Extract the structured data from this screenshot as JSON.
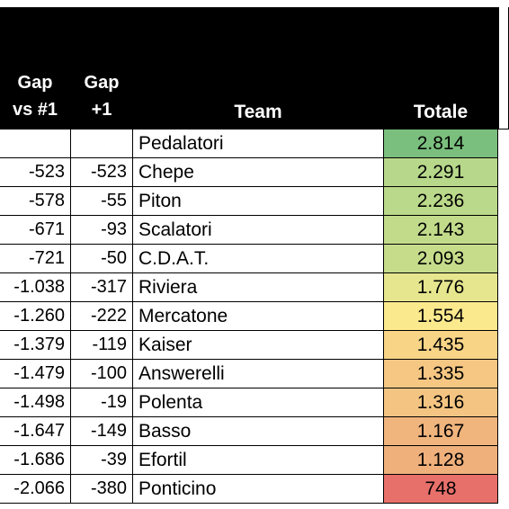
{
  "headers": {
    "gap_first_line1": "Gap",
    "gap_first_line2": "vs #1",
    "gap_prev_line1": "Gap",
    "gap_prev_line2": "+1",
    "team": "Team",
    "total": "Totale"
  },
  "rows": [
    {
      "gap_first": "",
      "gap_prev": "",
      "team": "Pedalatori",
      "total": "2.814",
      "color": "#7bbf7e"
    },
    {
      "gap_first": "-523",
      "gap_prev": "-523",
      "team": "Chepe",
      "total": "2.291",
      "color": "#b7d88a"
    },
    {
      "gap_first": "-578",
      "gap_prev": "-55",
      "team": "Piton",
      "total": "2.236",
      "color": "#bbd98a"
    },
    {
      "gap_first": "-671",
      "gap_prev": "-93",
      "team": "Scalatori",
      "total": "2.143",
      "color": "#c2db8b"
    },
    {
      "gap_first": "-721",
      "gap_prev": "-50",
      "team": "C.D.A.T.",
      "total": "2.093",
      "color": "#c6dc8b"
    },
    {
      "gap_first": "-1.038",
      "gap_prev": "-317",
      "team": "Riviera",
      "total": "1.776",
      "color": "#e6e68e"
    },
    {
      "gap_first": "-1.260",
      "gap_prev": "-222",
      "team": "Mercatone",
      "total": "1.554",
      "color": "#fbe98e"
    },
    {
      "gap_first": "-1.379",
      "gap_prev": "-119",
      "team": "Kaiser",
      "total": "1.435",
      "color": "#f8d487"
    },
    {
      "gap_first": "-1.479",
      "gap_prev": "-100",
      "team": "Answerelli",
      "total": "1.335",
      "color": "#f5c783"
    },
    {
      "gap_first": "-1.498",
      "gap_prev": "-19",
      "team": "Polenta",
      "total": "1.316",
      "color": "#f4c582"
    },
    {
      "gap_first": "-1.647",
      "gap_prev": "-149",
      "team": "Basso",
      "total": "1.167",
      "color": "#f0b47d"
    },
    {
      "gap_first": "-1.686",
      "gap_prev": "-39",
      "team": "Efortil",
      "total": "1.128",
      "color": "#efb07c"
    },
    {
      "gap_first": "-2.066",
      "gap_prev": "-380",
      "team": "Ponticino",
      "total": "748",
      "color": "#e8706b"
    }
  ]
}
